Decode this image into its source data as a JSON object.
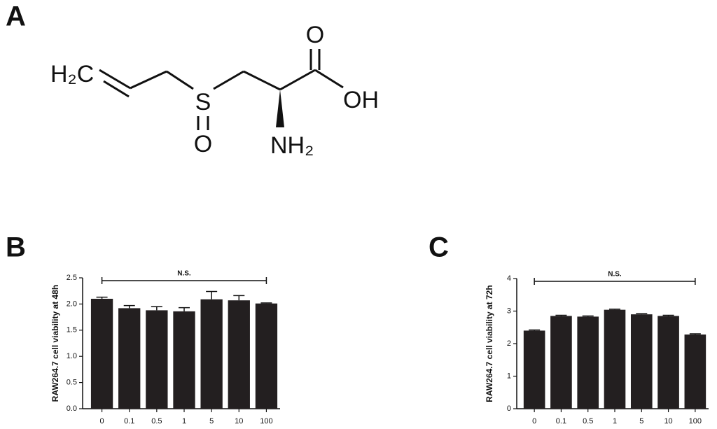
{
  "panels": [
    "A",
    "B",
    "C"
  ],
  "molecule": {
    "atoms": [
      "H₂C",
      "S",
      "O",
      "NH₂",
      "O",
      "OH"
    ]
  },
  "chart_data": [
    {
      "type": "bar",
      "ylabel": "RAW264.7 cell viability at 48h",
      "categories": [
        "0",
        "0.1",
        "0.5",
        "1",
        "5",
        "10",
        "100"
      ],
      "values": [
        2.1,
        1.92,
        1.88,
        1.86,
        2.09,
        2.07,
        2.01
      ],
      "errors": [
        0.03,
        0.05,
        0.07,
        0.07,
        0.15,
        0.09,
        0.01
      ],
      "color": "#231f20",
      "ylim": [
        0,
        2.5
      ],
      "yticks": [
        {
          "value": 0,
          "label": "0.0"
        },
        0.5,
        {
          "value": 1,
          "label": "1.0"
        },
        1.5,
        {
          "value": 2,
          "label": "2.0"
        },
        2.5
      ],
      "annotation": "N.S."
    },
    {
      "type": "bar",
      "ylabel": "RAW264.7 cell viability at 72h",
      "categories": [
        "0",
        "0.1",
        "0.5",
        "1",
        "5",
        "10",
        "100"
      ],
      "values": [
        2.4,
        2.85,
        2.83,
        3.04,
        2.9,
        2.85,
        2.28
      ],
      "errors": [
        0.02,
        0.02,
        0.02,
        0.02,
        0.02,
        0.02,
        0.02
      ],
      "color": "#231f20",
      "ylim": [
        0,
        4
      ],
      "yticks": [
        0,
        1,
        2,
        3,
        4
      ],
      "annotation": "N.S."
    }
  ]
}
